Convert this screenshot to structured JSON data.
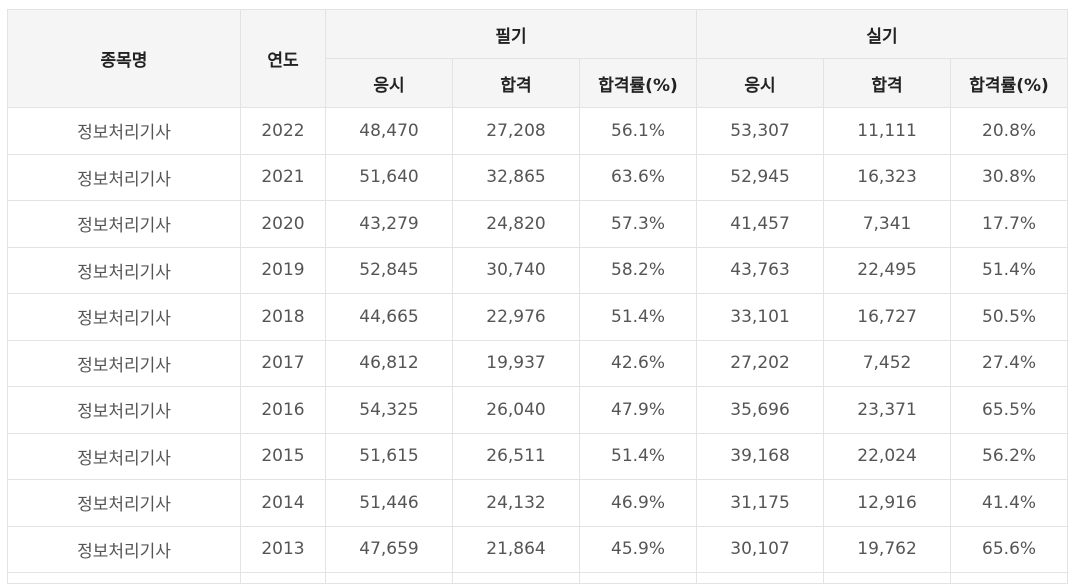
{
  "table": {
    "headers": {
      "item": "종목명",
      "year": "연도",
      "written": "필기",
      "practical": "실기",
      "sub": [
        "응시",
        "합격",
        "합격률(%)",
        "응시",
        "합격",
        "합격률(%)"
      ]
    },
    "rows": [
      [
        "정보처리기사",
        "2022",
        "48,470",
        "27,208",
        "56.1%",
        "53,307",
        "11,111",
        "20.8%"
      ],
      [
        "정보처리기사",
        "2021",
        "51,640",
        "32,865",
        "63.6%",
        "52,945",
        "16,323",
        "30.8%"
      ],
      [
        "정보처리기사",
        "2020",
        "43,279",
        "24,820",
        "57.3%",
        "41,457",
        "7,341",
        "17.7%"
      ],
      [
        "정보처리기사",
        "2019",
        "52,845",
        "30,740",
        "58.2%",
        "43,763",
        "22,495",
        "51.4%"
      ],
      [
        "정보처리기사",
        "2018",
        "44,665",
        "22,976",
        "51.4%",
        "33,101",
        "16,727",
        "50.5%"
      ],
      [
        "정보처리기사",
        "2017",
        "46,812",
        "19,937",
        "42.6%",
        "27,202",
        "7,452",
        "27.4%"
      ],
      [
        "정보처리기사",
        "2016",
        "54,325",
        "26,040",
        "47.9%",
        "35,696",
        "23,371",
        "65.5%"
      ],
      [
        "정보처리기사",
        "2015",
        "51,615",
        "26,511",
        "51.4%",
        "39,168",
        "22,024",
        "56.2%"
      ],
      [
        "정보처리기사",
        "2014",
        "51,446",
        "24,132",
        "46.9%",
        "31,175",
        "12,916",
        "41.4%"
      ],
      [
        "정보처리기사",
        "2013",
        "47,659",
        "21,864",
        "45.9%",
        "30,107",
        "19,762",
        "65.6%"
      ]
    ]
  }
}
